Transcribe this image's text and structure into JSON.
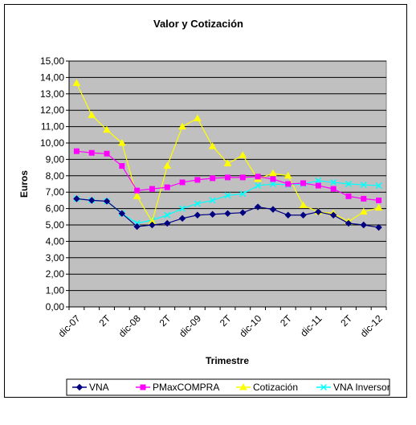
{
  "chart_data": {
    "type": "line",
    "title": "Valor y Cotización",
    "xlabel": "Trimestre",
    "ylabel": "Euros",
    "ylim": [
      0,
      15
    ],
    "yticks": [
      "0,00",
      "1,00",
      "2,00",
      "3,00",
      "4,00",
      "5,00",
      "6,00",
      "7,00",
      "8,00",
      "9,00",
      "10,00",
      "11,00",
      "12,00",
      "13,00",
      "14,00",
      "15,00"
    ],
    "categories": [
      "dic-07",
      "",
      "2T",
      "",
      "dic-08",
      "",
      "2T",
      "",
      "dic-09",
      "",
      "2T",
      "",
      "dic-10",
      "",
      "2T",
      "",
      "dic-11",
      "",
      "2T",
      "",
      "dic-12"
    ],
    "legend_position": "bottom",
    "plot_background": "#c0c0c0",
    "series": [
      {
        "name": "VNA",
        "color": "#000080",
        "marker": "diamond",
        "values": [
          6.6,
          6.5,
          6.45,
          5.7,
          4.9,
          5.0,
          5.1,
          5.4,
          5.6,
          5.65,
          5.7,
          5.75,
          6.1,
          5.95,
          5.6,
          5.6,
          5.8,
          5.6,
          5.1,
          5.0,
          4.85
        ]
      },
      {
        "name": "PMaxCOMPRA",
        "color": "#ff00ff",
        "marker": "square",
        "values": [
          9.5,
          9.4,
          9.35,
          8.6,
          7.1,
          7.2,
          7.3,
          7.6,
          7.75,
          7.85,
          7.9,
          7.9,
          7.95,
          7.8,
          7.5,
          7.55,
          7.4,
          7.2,
          6.75,
          6.6,
          6.5
        ]
      },
      {
        "name": "Cotización",
        "color": "#ffff00",
        "marker": "triangle",
        "values": [
          13.65,
          11.7,
          10.8,
          10.0,
          6.75,
          5.2,
          8.6,
          11.0,
          11.5,
          9.8,
          8.75,
          9.25,
          7.8,
          8.15,
          8.0,
          6.2,
          5.8,
          5.7,
          5.2,
          5.8,
          6.05
        ]
      },
      {
        "name": "VNA Inversor",
        "color": "#00ffff",
        "marker": "star",
        "values": [
          6.6,
          6.5,
          6.45,
          5.7,
          5.1,
          5.3,
          5.6,
          6.0,
          6.3,
          6.5,
          6.8,
          6.9,
          7.4,
          7.5,
          7.45,
          7.5,
          7.7,
          7.6,
          7.5,
          7.45,
          7.4
        ]
      }
    ]
  }
}
